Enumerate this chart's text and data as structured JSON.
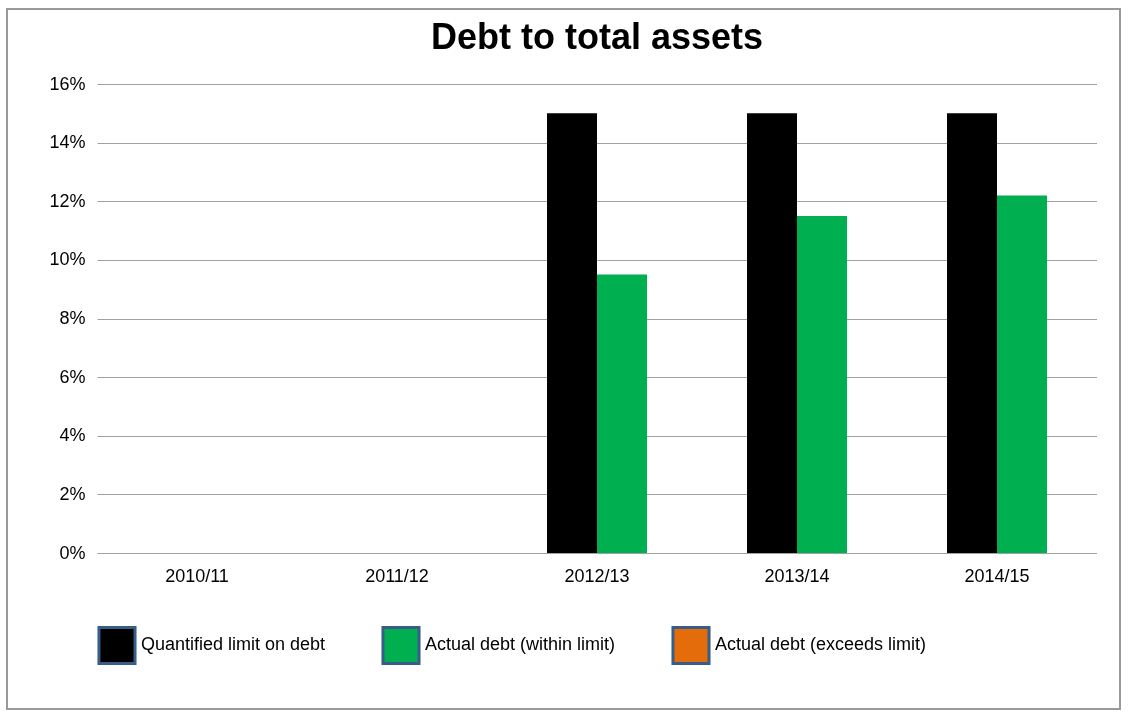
{
  "chart_data": {
    "type": "bar",
    "title": "Debt to total assets",
    "categories": [
      "2010/11",
      "2011/12",
      "2012/13",
      "2013/14",
      "2014/15"
    ],
    "series": [
      {
        "name": "Quantified limit on debt",
        "color": "#000000",
        "values": [
          null,
          null,
          15,
          15,
          15
        ]
      },
      {
        "name": "Actual debt (within limit)",
        "color": "#00b050",
        "values": [
          null,
          null,
          9.5,
          11.5,
          12.2
        ]
      },
      {
        "name": "Actual debt (exceeds limit)",
        "color": "#e46c0a",
        "values": [
          null,
          null,
          null,
          null,
          null
        ]
      }
    ],
    "ylim": [
      0,
      16
    ],
    "yticks": [
      {
        "value": 0,
        "label": "0%"
      },
      {
        "value": 2,
        "label": "2%"
      },
      {
        "value": 4,
        "label": "4%"
      },
      {
        "value": 6,
        "label": "6%"
      },
      {
        "value": 8,
        "label": "8%"
      },
      {
        "value": 10,
        "label": "10%"
      },
      {
        "value": 12,
        "label": "12%"
      },
      {
        "value": 14,
        "label": "14%"
      },
      {
        "value": 16,
        "label": "16%"
      }
    ],
    "grid": "y",
    "legend": "bottom"
  }
}
